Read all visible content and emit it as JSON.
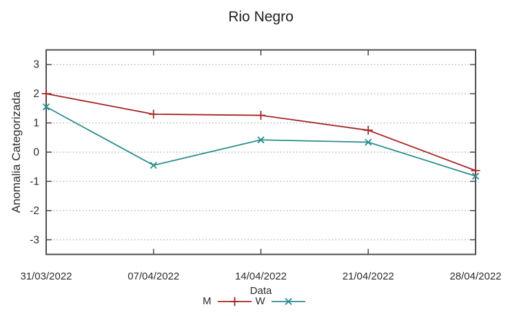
{
  "chart_data": {
    "type": "line",
    "title": "Rio Negro",
    "xlabel": "Data",
    "ylabel": "Anomalia Categorizada",
    "x": [
      "31/03/2022",
      "07/04/2022",
      "14/04/2022",
      "21/04/2022",
      "28/04/2022"
    ],
    "yticks": [
      -3,
      -2,
      -1,
      0,
      1,
      2,
      3
    ],
    "ylim": [
      -3.5,
      3.5
    ],
    "grid": "horizontal dotted gridlines at integer y values",
    "legend_position": "bottom-center",
    "series": [
      {
        "name": "M",
        "marker": "plus",
        "color": "#a52424",
        "values": [
          2.0,
          1.3,
          1.26,
          0.75,
          -0.63
        ]
      },
      {
        "name": "W",
        "marker": "cross",
        "color": "#2b8c8c",
        "values": [
          1.55,
          -0.45,
          0.42,
          0.34,
          -0.82
        ]
      }
    ],
    "colors": {
      "axis_border": "#4d4d4d",
      "gridline": "#b6b6b6",
      "tick_text": "#2b2b2b",
      "background": "#ffffff"
    }
  }
}
